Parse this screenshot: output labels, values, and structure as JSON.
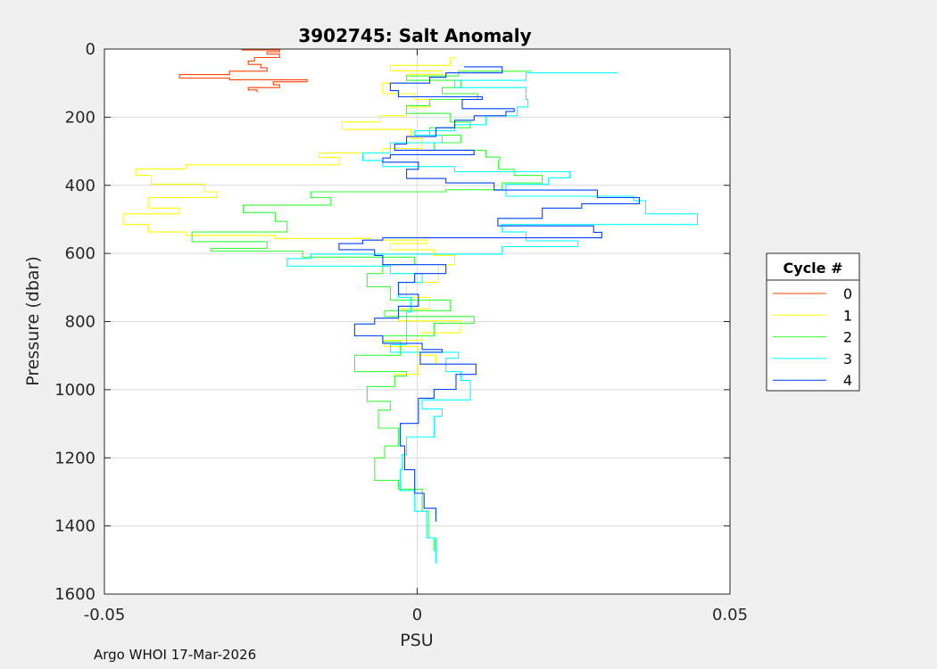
{
  "chart_data": {
    "type": "line",
    "title": "3902745: Salt Anomaly",
    "xlabel": "PSU",
    "ylabel": "Pressure (dbar)",
    "xlim": [
      -0.05,
      0.05
    ],
    "ylim": [
      0,
      1600
    ],
    "y_reversed": true,
    "xticks": [
      -0.05,
      0,
      0.05
    ],
    "xtick_labels": [
      "-0.05",
      "0",
      "0.05"
    ],
    "yticks": [
      0,
      200,
      400,
      600,
      800,
      1000,
      1200,
      1400,
      1600
    ],
    "ytick_labels": [
      "0",
      "200",
      "400",
      "600",
      "800",
      "1000",
      "1200",
      "1400",
      "1600"
    ],
    "grid": true,
    "legend": {
      "title": "Cycle #",
      "placement": "outside-right"
    },
    "series": [
      {
        "name": "0",
        "color": "#ff4000",
        "points": [
          [
            0,
            -0.035
          ],
          [
            3,
            -0.028
          ],
          [
            8,
            -0.022
          ],
          [
            15,
            -0.024
          ],
          [
            25,
            -0.022
          ],
          [
            35,
            -0.026
          ],
          [
            45,
            -0.027
          ],
          [
            55,
            -0.025
          ],
          [
            65,
            -0.024
          ],
          [
            75,
            -0.03
          ],
          [
            85,
            -0.038
          ],
          [
            90,
            -0.03
          ],
          [
            96,
            -0.0176
          ],
          [
            105,
            -0.023
          ],
          [
            113,
            -0.022
          ],
          [
            120,
            -0.027
          ],
          [
            127,
            -0.0256
          ]
        ]
      },
      {
        "name": "1",
        "color": "#ffff00",
        "points": [
          [
            26,
            0.0062
          ],
          [
            48,
            0.0053
          ],
          [
            64,
            -0.0043
          ],
          [
            74,
            0.004
          ],
          [
            100,
            -0.0017
          ],
          [
            131,
            -0.0055
          ],
          [
            148,
            -0.0005
          ],
          [
            170,
            0.002
          ],
          [
            196,
            -0.0017
          ],
          [
            214,
            -0.006
          ],
          [
            236,
            -0.012
          ],
          [
            262,
            -0.001
          ],
          [
            292,
            0.0008
          ],
          [
            305,
            -0.0055
          ],
          [
            318,
            -0.0157
          ],
          [
            340,
            -0.0125
          ],
          [
            352,
            -0.037
          ],
          [
            371,
            -0.045
          ],
          [
            397,
            -0.0425
          ],
          [
            419,
            -0.034
          ],
          [
            436,
            -0.032
          ],
          [
            467,
            -0.043
          ],
          [
            484,
            -0.038
          ],
          [
            515,
            -0.047
          ],
          [
            537,
            -0.043
          ],
          [
            547,
            -0.037
          ],
          [
            556,
            -0.0227
          ],
          [
            561,
            -0.0075
          ],
          [
            571,
            0.0015
          ],
          [
            589,
            -0.0043
          ],
          [
            606,
            0.0027
          ],
          [
            633,
            0.006
          ],
          [
            685,
            0.0034
          ],
          [
            729,
            -0.0017
          ],
          [
            763,
            0.002
          ],
          [
            798,
            -0.003
          ],
          [
            833,
            0.0069
          ],
          [
            855,
            0.0008
          ],
          [
            873,
            -0.0052
          ],
          [
            899,
            0.0002
          ],
          [
            925,
            0.003
          ],
          [
            955,
            0.0002
          ],
          [
            981,
            -0.0036
          ]
        ]
      },
      {
        "name": "2",
        "color": "#33ff33",
        "points": [
          [
            65,
            0.0183
          ],
          [
            79,
            0.0066
          ],
          [
            92,
            -0.0017
          ],
          [
            113,
            0.007
          ],
          [
            131,
            0.004
          ],
          [
            148,
            0.0097
          ],
          [
            166,
            0.002
          ],
          [
            189,
            -0.0017
          ],
          [
            214,
            0.0053
          ],
          [
            231,
            0.0085
          ],
          [
            253,
            0.002
          ],
          [
            275,
            0.007
          ],
          [
            297,
            0.0027
          ],
          [
            317,
            0.011
          ],
          [
            327,
            0.0132
          ],
          [
            353,
            0.013
          ],
          [
            371,
            0.0155
          ],
          [
            393,
            0.02
          ],
          [
            413,
            0.0136
          ],
          [
            419,
            0.0046
          ],
          [
            436,
            -0.017
          ],
          [
            458,
            -0.0138
          ],
          [
            480,
            -0.0278
          ],
          [
            506,
            -0.0227
          ],
          [
            537,
            -0.0208
          ],
          [
            565,
            -0.036
          ],
          [
            585,
            -0.024
          ],
          [
            593,
            -0.033
          ],
          [
            611,
            -0.0183
          ],
          [
            633,
            -0.0004
          ],
          [
            659,
            -0.0055
          ],
          [
            698,
            -0.008
          ],
          [
            737,
            -0.0043
          ],
          [
            768,
            0.0053
          ],
          [
            785,
            -0.0052
          ],
          [
            805,
            0.0091
          ],
          [
            842,
            0.0027
          ],
          [
            859,
            -0.0055
          ],
          [
            899,
            -0.0027
          ],
          [
            947,
            -0.01
          ],
          [
            960,
            -0.0017
          ],
          [
            991,
            -0.0036
          ],
          [
            1034,
            -0.008
          ],
          [
            1060,
            -0.0043
          ],
          [
            1113,
            -0.0062
          ],
          [
            1165,
            -0.003
          ],
          [
            1200,
            -0.0052
          ],
          [
            1266,
            -0.0068
          ],
          [
            1292,
            -0.003
          ],
          [
            1357,
            0.0008
          ],
          [
            1435,
            0.0018
          ],
          [
            1475,
            0.0027
          ]
        ]
      },
      {
        "name": "3",
        "color": "#00ffff",
        "points": [
          [
            70,
            0.032
          ],
          [
            92,
            0.0174
          ],
          [
            113,
            0.006
          ],
          [
            148,
            0.0174
          ],
          [
            170,
            0.0177
          ],
          [
            196,
            0.016
          ],
          [
            222,
            0.011
          ],
          [
            240,
            0.006
          ],
          [
            253,
            -0.0004
          ],
          [
            275,
            0.004
          ],
          [
            305,
            -0.0043
          ],
          [
            327,
            -0.0087
          ],
          [
            345,
            -0.0055
          ],
          [
            360,
            0.006
          ],
          [
            378,
            0.0244
          ],
          [
            397,
            0.021
          ],
          [
            432,
            0.0142
          ],
          [
            445,
            0.0346
          ],
          [
            484,
            0.0365
          ],
          [
            515,
            0.0448
          ],
          [
            537,
            0.0136
          ],
          [
            563,
            0.0174
          ],
          [
            580,
            0.0257
          ],
          [
            602,
            0.0136
          ],
          [
            615,
            -0.017
          ],
          [
            637,
            -0.0208
          ],
          [
            659,
            -0.0043
          ],
          [
            685,
            0.0008
          ],
          [
            729,
            -0.003
          ],
          [
            772,
            -0.001
          ],
          [
            816,
            -0.0017
          ],
          [
            868,
            -0.0017
          ],
          [
            890,
            -0.0043
          ],
          [
            908,
            0.0066
          ],
          [
            947,
            0.0046
          ],
          [
            973,
            0.007
          ],
          [
            1030,
            0.0085
          ],
          [
            1056,
            0.0008
          ],
          [
            1078,
            0.004
          ],
          [
            1139,
            0.0027
          ],
          [
            1191,
            -0.0017
          ],
          [
            1235,
            -0.0024
          ],
          [
            1296,
            -0.0027
          ],
          [
            1357,
            -0.0004
          ],
          [
            1435,
            0.0015
          ],
          [
            1510,
            0.003
          ]
        ]
      },
      {
        "name": "4",
        "color": "#0040ff",
        "points": [
          [
            52,
            0.0075
          ],
          [
            70,
            0.0136
          ],
          [
            83,
            0.0046
          ],
          [
            100,
            0.002
          ],
          [
            122,
            -0.0043
          ],
          [
            140,
            -0.003
          ],
          [
            148,
            0.0104
          ],
          [
            175,
            0.0072
          ],
          [
            183,
            0.0155
          ],
          [
            196,
            0.0142
          ],
          [
            209,
            0.0091
          ],
          [
            231,
            0.006
          ],
          [
            257,
            0.003
          ],
          [
            279,
            -0.0017
          ],
          [
            297,
            -0.0036
          ],
          [
            310,
            0.0091
          ],
          [
            320,
            -0.0043
          ],
          [
            332,
            -0.0055
          ],
          [
            353,
            0.0002
          ],
          [
            380,
            -0.0017
          ],
          [
            393,
            0.0046
          ],
          [
            414,
            0.0123
          ],
          [
            436,
            0.0288
          ],
          [
            454,
            0.0355
          ],
          [
            467,
            0.0263
          ],
          [
            497,
            0.02
          ],
          [
            519,
            0.0129
          ],
          [
            538,
            0.0282
          ],
          [
            554,
            0.0295
          ],
          [
            561,
            -0.0055
          ],
          [
            571,
            -0.0087
          ],
          [
            589,
            -0.0125
          ],
          [
            606,
            -0.0068
          ],
          [
            633,
            -0.0055
          ],
          [
            659,
            0.0046
          ],
          [
            685,
            -0.0004
          ],
          [
            720,
            -0.003
          ],
          [
            755,
            0.0002
          ],
          [
            790,
            -0.003
          ],
          [
            807,
            -0.0068
          ],
          [
            833,
            -0.01
          ],
          [
            842,
            -0.01
          ],
          [
            864,
            -0.0055
          ],
          [
            882,
            0.0008
          ],
          [
            890,
            0.004
          ],
          [
            925,
            0.0005
          ],
          [
            955,
            0.0094
          ],
          [
            999,
            0.0062
          ],
          [
            1025,
            0.0027
          ],
          [
            1099,
            0.0002
          ],
          [
            1165,
            -0.0027
          ],
          [
            1235,
            -0.002
          ],
          [
            1304,
            -0.0004
          ],
          [
            1348,
            0.0011
          ],
          [
            1387,
            0.003
          ]
        ]
      }
    ]
  },
  "footer": "Argo WHOI 17-Mar-2026"
}
